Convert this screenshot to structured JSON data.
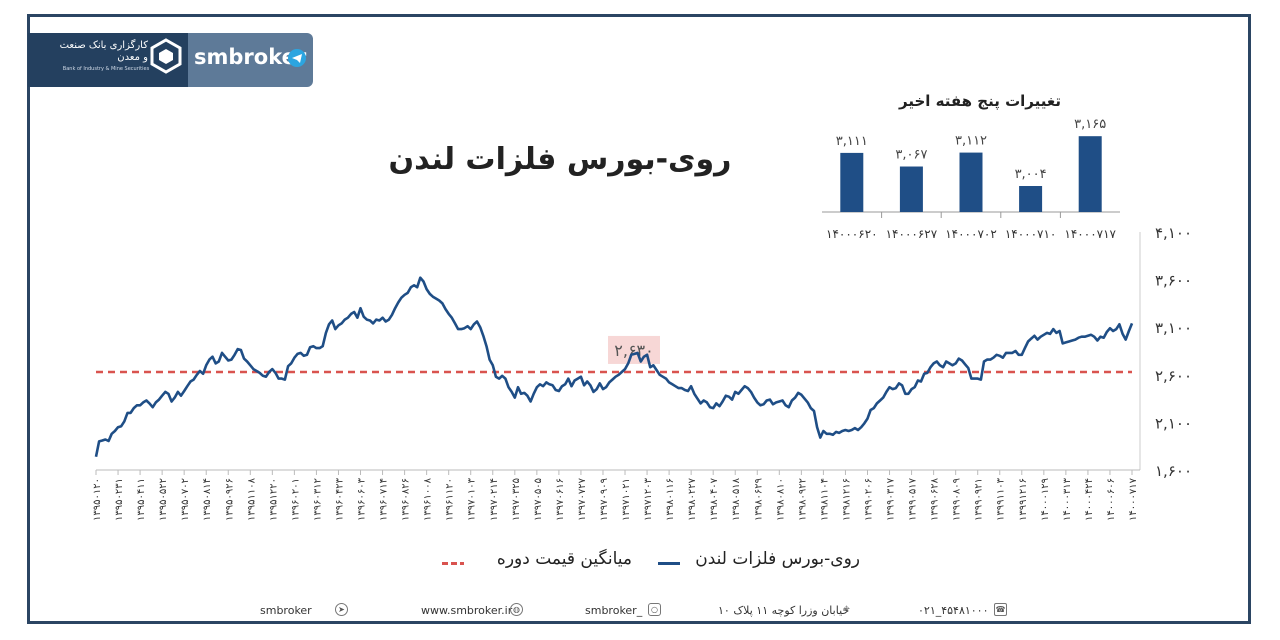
{
  "header": {
    "bank_name": "کارگزاری بانک صنعت و معدن",
    "bank_subtitle": "Bank of Industry & Mine Securities",
    "brand": "smbroker",
    "telegram_icon": "telegram-icon"
  },
  "colors": {
    "series": "#1f4e86",
    "average": "#d9534f",
    "frame": "#2b4563",
    "bars": "#1f4e86"
  },
  "chart_title": "روی-بورس فلزات لندن",
  "bar_chart_title": "تغییرات پنج هفته اخیر",
  "legend": {
    "series": "روی-بورس فلزات لندن",
    "average": "میانگین قیمت دوره"
  },
  "average_label": "۲,۶۳۰",
  "chart_data": [
    {
      "type": "line",
      "title": "روی-بورس فلزات لندن",
      "ylim": [
        1600,
        4100
      ],
      "y_ticks": [
        "۱,۶۰۰",
        "۲,۱۰۰",
        "۲,۶۰۰",
        "۳,۱۰۰",
        "۳,۶۰۰",
        "۴,۱۰۰"
      ],
      "y_tick_values": [
        1600,
        2100,
        2600,
        3100,
        3600,
        4100
      ],
      "x_ticks": [
        "۱۳۹۵۰۱۲۰",
        "۱۳۹۵۰۲۳۱",
        "۱۳۹۵۰۴۱۱",
        "۱۳۹۵۰۵۲۲",
        "۱۳۹۵۰۷۰۲",
        "۱۳۹۵۰۸۱۴",
        "۱۳۹۵۰۹۲۶",
        "۱۳۹۵۱۱۰۸",
        "۱۳۹۵۱۲۲۰",
        "۱۳۹۶۰۲۰۱",
        "۱۳۹۶۰۳۱۲",
        "۱۳۹۶۰۴۲۳",
        "۱۳۹۶۰۶۰۳",
        "۱۳۹۶۰۷۱۴",
        "۱۳۹۶۰۸۲۶",
        "۱۳۹۶۱۰۰۸",
        "۱۳۹۶۱۱۲۰",
        "۱۳۹۷۰۱۰۳",
        "۱۳۹۷۰۲۱۴",
        "۱۳۹۷۰۳۲۵",
        "۱۳۹۷۰۵۰۵",
        "۱۳۹۷۰۶۱۶",
        "۱۳۹۷۰۷۲۷",
        "۱۳۹۷۰۹۰۹",
        "۱۳۹۷۱۰۲۱",
        "۱۳۹۷۱۲۰۳",
        "۱۳۹۸۰۱۱۶",
        "۱۳۹۸۰۲۲۷",
        "۱۳۹۸۰۴۰۷",
        "۱۳۹۸۰۵۱۸",
        "۱۳۹۸۰۶۲۹",
        "۱۳۹۸۰۸۱۰",
        "۱۳۹۸۰۹۲۲",
        "۱۳۹۸۱۱۰۴",
        "۱۳۹۸۱۲۱۶",
        "۱۳۹۹۰۲۰۶",
        "۱۳۹۹۰۳۱۷",
        "۱۳۹۹۰۵۱۷",
        "۱۳۹۹۰۶۲۸",
        "۱۳۹۹۰۸۰۹",
        "۱۳۹۹۰۹۲۱",
        "۱۳۹۹۱۱۰۳",
        "۱۳۹۹۱۲۱۶",
        "۱۴۰۰۰۱۲۹",
        "۱۴۰۰۰۳۱۳",
        "۱۴۰۰۰۴۲۴",
        "۱۴۰۰۰۶۰۶",
        "۱۴۰۰۰۷۱۷"
      ],
      "average": 2630,
      "series": [
        {
          "name": "روی-بورس فلزات لندن",
          "values": [
            1740,
            1900,
            1910,
            1920,
            1905,
            1980,
            2010,
            2050,
            2060,
            2110,
            2200,
            2200,
            2250,
            2280,
            2280,
            2310,
            2330,
            2300,
            2260,
            2310,
            2340,
            2380,
            2420,
            2400,
            2320,
            2360,
            2420,
            2380,
            2430,
            2480,
            2530,
            2550,
            2600,
            2640,
            2610,
            2700,
            2760,
            2790,
            2720,
            2740,
            2830,
            2790,
            2750,
            2760,
            2810,
            2870,
            2860,
            2770,
            2740,
            2700,
            2660,
            2640,
            2620,
            2590,
            2580,
            2630,
            2660,
            2620,
            2560,
            2560,
            2550,
            2690,
            2720,
            2780,
            2820,
            2830,
            2800,
            2810,
            2890,
            2900,
            2880,
            2880,
            2900,
            3040,
            3130,
            3170,
            3080,
            3120,
            3140,
            3180,
            3200,
            3240,
            3260,
            3200,
            3300,
            3210,
            3180,
            3170,
            3140,
            3180,
            3170,
            3200,
            3160,
            3180,
            3230,
            3300,
            3360,
            3410,
            3440,
            3460,
            3520,
            3540,
            3520,
            3620,
            3580,
            3500,
            3450,
            3420,
            3400,
            3380,
            3350,
            3290,
            3240,
            3200,
            3140,
            3080,
            3080,
            3090,
            3110,
            3080,
            3130,
            3160,
            3100,
            3010,
            2900,
            2760,
            2700,
            2580,
            2560,
            2590,
            2560,
            2470,
            2420,
            2360,
            2470,
            2400,
            2410,
            2380,
            2320,
            2400,
            2470,
            2500,
            2480,
            2520,
            2500,
            2490,
            2440,
            2430,
            2480,
            2500,
            2560,
            2480,
            2540,
            2560,
            2580,
            2490,
            2530,
            2490,
            2420,
            2450,
            2510,
            2450,
            2470,
            2520,
            2550,
            2580,
            2600,
            2630,
            2660,
            2720,
            2810,
            2820,
            2830,
            2740,
            2790,
            2810,
            2680,
            2700,
            2650,
            2600,
            2580,
            2560,
            2520,
            2500,
            2480,
            2460,
            2460,
            2440,
            2430,
            2480,
            2400,
            2350,
            2300,
            2330,
            2310,
            2260,
            2250,
            2300,
            2270,
            2320,
            2380,
            2370,
            2340,
            2420,
            2400,
            2440,
            2480,
            2460,
            2420,
            2360,
            2310,
            2280,
            2290,
            2330,
            2340,
            2290,
            2310,
            2320,
            2330,
            2280,
            2260,
            2330,
            2360,
            2410,
            2390,
            2350,
            2310,
            2250,
            2220,
            2050,
            1940,
            2010,
            1980,
            1980,
            1970,
            2000,
            1990,
            2010,
            2020,
            2010,
            2020,
            2040,
            2020,
            2050,
            2090,
            2140,
            2230,
            2250,
            2300,
            2330,
            2360,
            2420,
            2470,
            2450,
            2460,
            2510,
            2490,
            2400,
            2400,
            2450,
            2470,
            2540,
            2530,
            2610,
            2620,
            2680,
            2720,
            2740,
            2700,
            2680,
            2740,
            2720,
            2700,
            2720,
            2770,
            2750,
            2710,
            2670,
            2560,
            2560,
            2560,
            2550,
            2740,
            2760,
            2760,
            2780,
            2810,
            2800,
            2780,
            2830,
            2830,
            2830,
            2850,
            2810,
            2810,
            2880,
            2950,
            2980,
            3010,
            2970,
            3000,
            3020,
            3040,
            3030,
            3080,
            3040,
            3060,
            2930,
            2940,
            2950,
            2960,
            2970,
            2990,
            3000,
            3000,
            3010,
            3020,
            3000,
            2960,
            3000,
            2990,
            3050,
            3090,
            3060,
            3080,
            3130,
            3030,
            2970,
            3060,
            3140
          ]
        }
      ]
    },
    {
      "type": "bar",
      "title": "تغییرات پنج هفته اخیر",
      "categories": [
        "۱۴۰۰۰۶۲۰",
        "۱۴۰۰۰۶۲۷",
        "۱۴۰۰۰۷۰۲",
        "۱۴۰۰۰۷۱۰",
        "۱۴۰۰۰۷۱۷"
      ],
      "values": [
        3111,
        3067,
        3112,
        3004,
        3165
      ],
      "value_labels": [
        "۳,۱۱۱",
        "۳,۰۶۷",
        "۳,۱۱۲",
        "۳,۰۰۴",
        "۳,۱۶۵"
      ],
      "ylim": [
        2920,
        3185
      ]
    }
  ],
  "footer": {
    "telegram": "smbroker",
    "telegram_icon": "telegram-icon",
    "website": "www.smbroker.ir",
    "website_icon": "globe-icon",
    "instagram": "smbroker_",
    "instagram_icon": "instagram-icon",
    "address": "خیابان وزرا کوچه ۱۱ پلاک ۱۰",
    "location_icon": "location-icon",
    "phone": "۰۲۱_۴۵۴۸۱۰۰۰",
    "phone_icon": "phone-icon"
  }
}
